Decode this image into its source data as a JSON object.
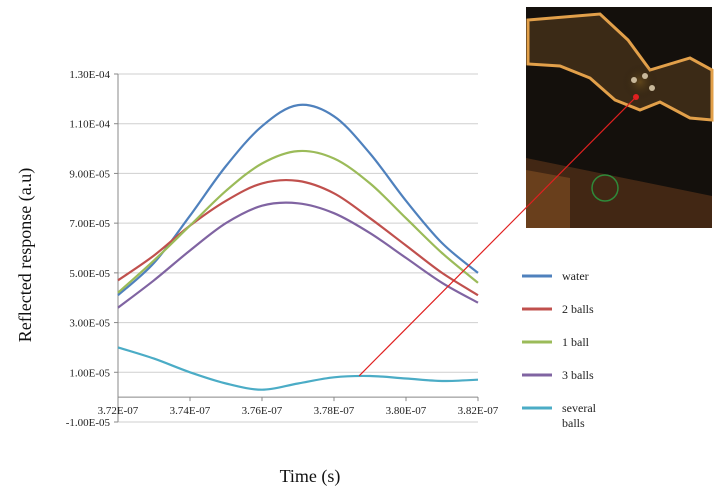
{
  "chart_data": {
    "type": "line",
    "xlabel": "Time (s)",
    "ylabel": "Reflected response (a.u)",
    "x_ticks": [
      "3.72E-07",
      "3.74E-07",
      "3.76E-07",
      "3.78E-07",
      "3.80E-07",
      "3.82E-07"
    ],
    "y_ticks": [
      "-1.00E-05",
      "1.00E-05",
      "3.00E-05",
      "5.00E-05",
      "7.00E-05",
      "9.00E-05",
      "1.10E-04",
      "1.30E-04"
    ],
    "xlim": [
      3.72e-07,
      3.82e-07
    ],
    "ylim": [
      -1e-05,
      0.00013
    ],
    "grid": "horizontal",
    "legend_position": "right",
    "series": [
      {
        "name": "water",
        "color": "#4f81bd",
        "x": [
          3.72e-07,
          3.73e-07,
          3.74e-07,
          3.75e-07,
          3.76e-07,
          3.77e-07,
          3.78e-07,
          3.79e-07,
          3.8e-07,
          3.81e-07,
          3.82e-07
        ],
        "y": [
          4.1e-05,
          5.4e-05,
          7.3e-05,
          9.3e-05,
          0.000109,
          0.0001175,
          0.000113,
          9.8e-05,
          7.9e-05,
          6.2e-05,
          5e-05
        ]
      },
      {
        "name": "2 balls",
        "color": "#c0504d",
        "x": [
          3.72e-07,
          3.73e-07,
          3.74e-07,
          3.75e-07,
          3.76e-07,
          3.77e-07,
          3.78e-07,
          3.79e-07,
          3.8e-07,
          3.81e-07,
          3.82e-07
        ],
        "y": [
          4.7e-05,
          5.7e-05,
          6.9e-05,
          7.9e-05,
          8.6e-05,
          8.7e-05,
          8.2e-05,
          7.2e-05,
          6.1e-05,
          5e-05,
          4.1e-05
        ]
      },
      {
        "name": "1 ball",
        "color": "#9bbb59",
        "x": [
          3.72e-07,
          3.73e-07,
          3.74e-07,
          3.75e-07,
          3.76e-07,
          3.77e-07,
          3.78e-07,
          3.79e-07,
          3.8e-07,
          3.81e-07,
          3.82e-07
        ],
        "y": [
          4.2e-05,
          5.5e-05,
          6.9e-05,
          8.3e-05,
          9.4e-05,
          9.9e-05,
          9.6e-05,
          8.6e-05,
          7.2e-05,
          5.8e-05,
          4.6e-05
        ]
      },
      {
        "name": "3 balls",
        "color": "#8064a2",
        "x": [
          3.72e-07,
          3.73e-07,
          3.74e-07,
          3.75e-07,
          3.76e-07,
          3.77e-07,
          3.78e-07,
          3.79e-07,
          3.8e-07,
          3.81e-07,
          3.82e-07
        ],
        "y": [
          3.6e-05,
          4.7e-05,
          5.9e-05,
          7e-05,
          7.7e-05,
          7.8e-05,
          7.4e-05,
          6.6e-05,
          5.6e-05,
          4.6e-05,
          3.8e-05
        ]
      },
      {
        "name": "several balls",
        "color": "#4bacc6",
        "x": [
          3.72e-07,
          3.73e-07,
          3.74e-07,
          3.75e-07,
          3.76e-07,
          3.77e-07,
          3.78e-07,
          3.79e-07,
          3.8e-07,
          3.81e-07,
          3.82e-07
        ],
        "y": [
          2e-05,
          1.55e-05,
          1e-05,
          5.5e-06,
          3e-06,
          5.5e-06,
          8e-06,
          8.5e-06,
          7.5e-06,
          6.5e-06,
          7e-06
        ]
      }
    ]
  },
  "inset": {
    "callout_color": "#e02020"
  }
}
